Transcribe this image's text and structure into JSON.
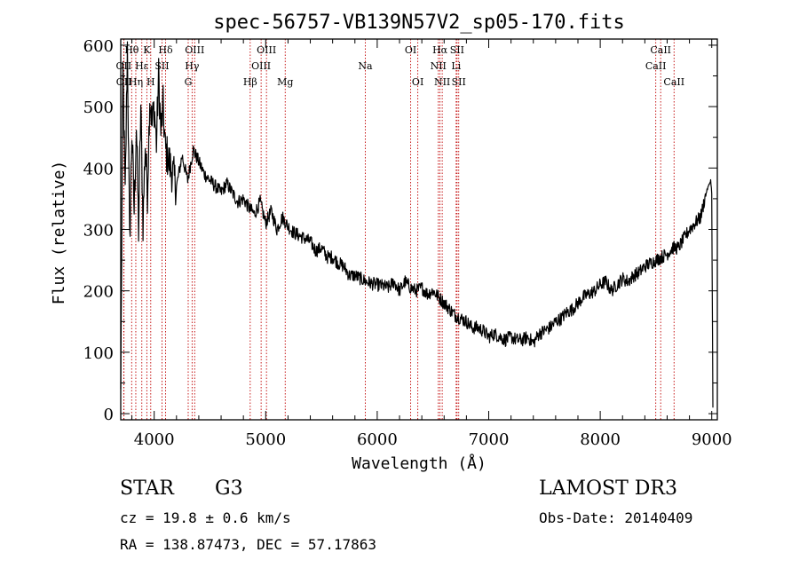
{
  "chart_data": {
    "type": "line",
    "title": "spec-56757-VB139N57V2_sp05-170.fits",
    "xlabel": "Wavelength (Å)",
    "ylabel": "Flux (relative)",
    "xlim": [
      3700,
      9050
    ],
    "ylim": [
      -10,
      610
    ],
    "xticks": [
      4000,
      5000,
      6000,
      7000,
      8000,
      9000
    ],
    "xtick_labels": [
      "4000",
      "5000",
      "6000",
      "7000",
      "8000",
      "9000"
    ],
    "yticks": [
      0,
      100,
      200,
      300,
      400,
      500,
      600
    ],
    "ytick_labels": [
      "0",
      "100",
      "200",
      "300",
      "400",
      "500",
      "600"
    ],
    "line_color": "#000000",
    "marker_color": "#c00000",
    "lines": [
      {
        "label": "Hθ",
        "wavelength": 3798,
        "row": 0
      },
      {
        "label": "OII",
        "wavelength": 3727,
        "row": 1
      },
      {
        "label": "OII",
        "wavelength": 3729,
        "row": 2
      },
      {
        "label": "Hη",
        "wavelength": 3835,
        "row": 2
      },
      {
        "label": "Hε",
        "wavelength": 3889,
        "row": 1
      },
      {
        "label": "K",
        "wavelength": 3934,
        "row": 0
      },
      {
        "label": "H",
        "wavelength": 3969,
        "row": 2
      },
      {
        "label": "SII",
        "wavelength": 4070,
        "row": 1
      },
      {
        "label": "Hδ",
        "wavelength": 4102,
        "row": 0
      },
      {
        "label": "OIII",
        "wavelength": 4363,
        "row": 0
      },
      {
        "label": "Hγ",
        "wavelength": 4340,
        "row": 1
      },
      {
        "label": "G",
        "wavelength": 4305,
        "row": 2
      },
      {
        "label": "Hβ",
        "wavelength": 4861,
        "row": 2
      },
      {
        "label": "OIII",
        "wavelength": 5007,
        "row": 0
      },
      {
        "label": "OIII",
        "wavelength": 4959,
        "row": 1
      },
      {
        "label": "Mg",
        "wavelength": 5175,
        "row": 2
      },
      {
        "label": "Na",
        "wavelength": 5893,
        "row": 1
      },
      {
        "label": "OI",
        "wavelength": 6300,
        "row": 0
      },
      {
        "label": "OI",
        "wavelength": 6364,
        "row": 2
      },
      {
        "label": "Hα",
        "wavelength": 6563,
        "row": 0
      },
      {
        "label": "NII",
        "wavelength": 6548,
        "row": 1
      },
      {
        "label": "NII",
        "wavelength": 6583,
        "row": 2
      },
      {
        "label": "SII",
        "wavelength": 6716,
        "row": 0
      },
      {
        "label": "Li",
        "wavelength": 6708,
        "row": 1
      },
      {
        "label": "SII",
        "wavelength": 6731,
        "row": 2
      },
      {
        "label": "CaII",
        "wavelength": 8542,
        "row": 0
      },
      {
        "label": "CaII",
        "wavelength": 8498,
        "row": 1
      },
      {
        "label": "CaII",
        "wavelength": 8662,
        "row": 2
      }
    ],
    "series": [
      {
        "name": "flux",
        "x": [
          3700,
          3720,
          3740,
          3760,
          3780,
          3800,
          3820,
          3840,
          3860,
          3880,
          3900,
          3920,
          3940,
          3960,
          3980,
          4000,
          4020,
          4040,
          4060,
          4080,
          4100,
          4150,
          4200,
          4250,
          4300,
          4350,
          4400,
          4450,
          4500,
          4550,
          4600,
          4650,
          4700,
          4750,
          4800,
          4850,
          4900,
          4950,
          5000,
          5050,
          5100,
          5150,
          5200,
          5250,
          5300,
          5350,
          5400,
          5450,
          5500,
          5550,
          5600,
          5650,
          5700,
          5750,
          5800,
          5850,
          5900,
          5950,
          6000,
          6050,
          6100,
          6150,
          6200,
          6250,
          6300,
          6350,
          6400,
          6450,
          6500,
          6550,
          6600,
          6650,
          6700,
          6750,
          6800,
          6850,
          6900,
          6950,
          7000,
          7050,
          7100,
          7150,
          7200,
          7250,
          7300,
          7350,
          7400,
          7450,
          7500,
          7550,
          7600,
          7650,
          7700,
          7750,
          7800,
          7850,
          7900,
          7950,
          8000,
          8050,
          8100,
          8150,
          8200,
          8250,
          8300,
          8350,
          8400,
          8450,
          8500,
          8550,
          8600,
          8650,
          8700,
          8750,
          8800,
          8850,
          8900,
          8950,
          8990,
          9000,
          9010
        ],
        "y": [
          40,
          560,
          350,
          600,
          280,
          460,
          330,
          470,
          300,
          500,
          310,
          440,
          360,
          520,
          470,
          500,
          440,
          550,
          460,
          500,
          430,
          400,
          370,
          420,
          380,
          430,
          410,
          390,
          380,
          370,
          360,
          375,
          360,
          345,
          350,
          335,
          325,
          345,
          310,
          330,
          300,
          320,
          305,
          295,
          290,
          285,
          280,
          265,
          270,
          255,
          255,
          245,
          240,
          225,
          225,
          220,
          215,
          212,
          210,
          208,
          205,
          215,
          200,
          215,
          205,
          200,
          205,
          195,
          200,
          190,
          180,
          170,
          160,
          155,
          150,
          140,
          140,
          135,
          125,
          130,
          125,
          120,
          125,
          120,
          120,
          125,
          115,
          130,
          135,
          140,
          150,
          155,
          165,
          170,
          180,
          190,
          195,
          200,
          210,
          215,
          200,
          210,
          220,
          215,
          225,
          230,
          240,
          245,
          250,
          255,
          260,
          270,
          270,
          285,
          300,
          310,
          320,
          360,
          380,
          360,
          10
        ]
      }
    ]
  },
  "info": {
    "object_class": "STAR",
    "subclass": "G3",
    "survey": "LAMOST DR3",
    "redshift": "cz = 19.8 ± 0.6 km/s",
    "obs_date": "Obs-Date: 20140409",
    "coords": "RA = 138.87473, DEC =  57.17863"
  }
}
